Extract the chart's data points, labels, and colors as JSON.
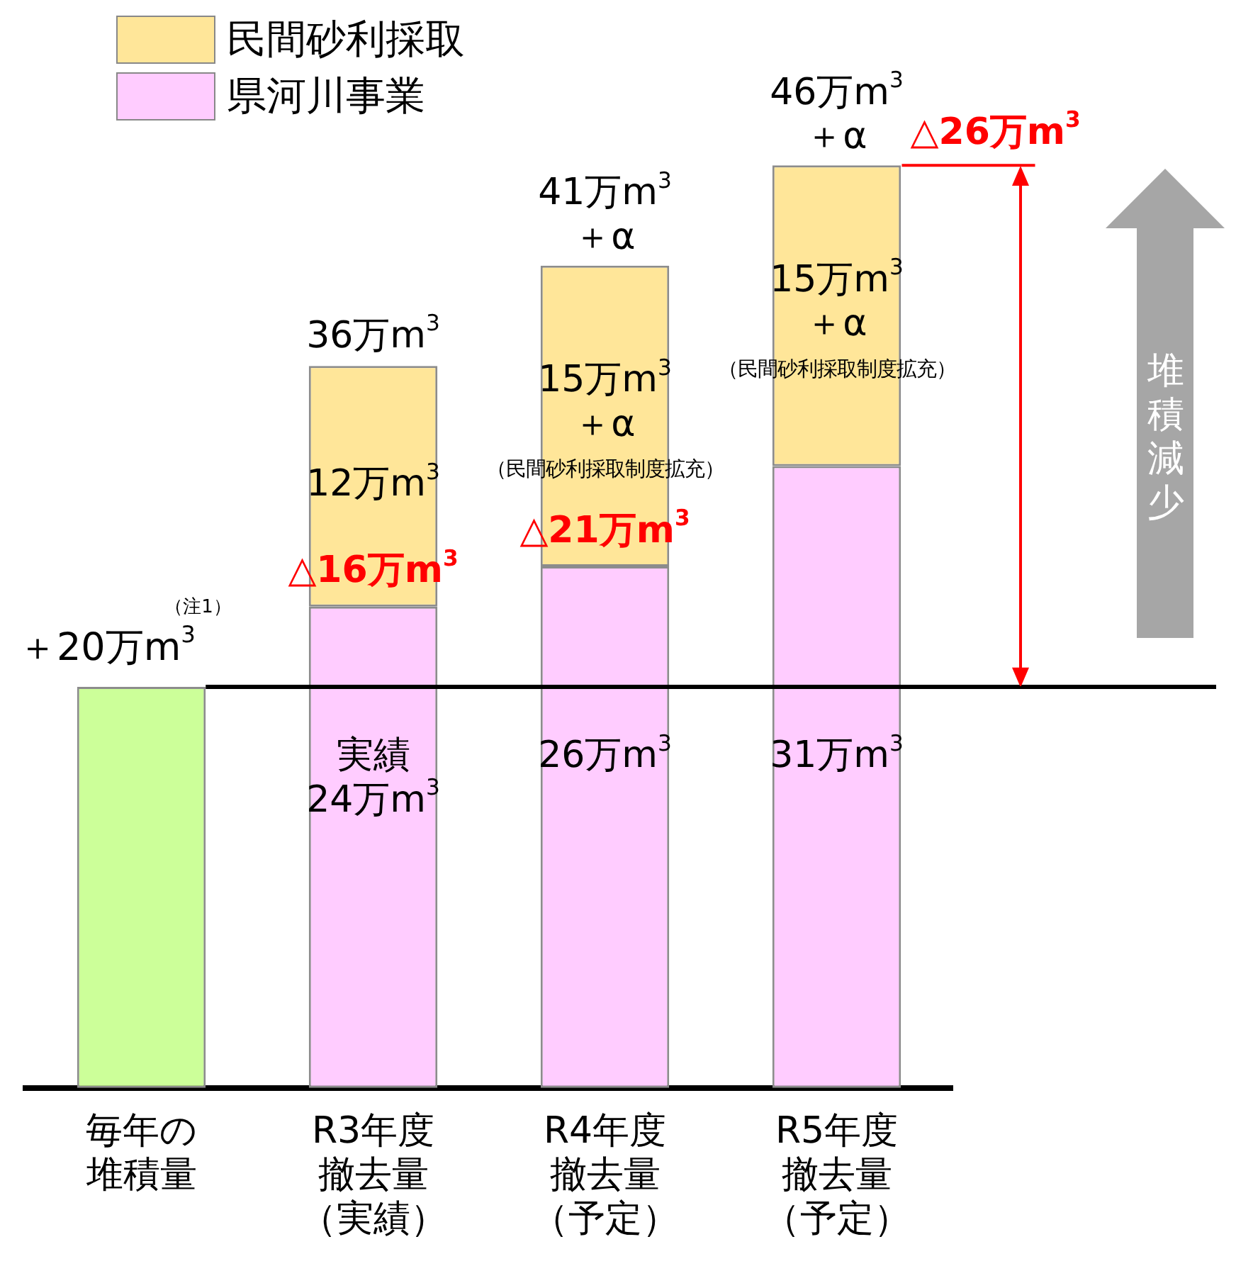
{
  "chart_data": {
    "type": "bar",
    "stacked": true,
    "legend": "top left",
    "tick_labels": "x",
    "grid": false,
    "categories": [
      "毎年の堆積量",
      "R3年度撤去量（実績）",
      "R4年度撤去量（予定）",
      "R5年度撤去量（予定）"
    ],
    "series": [
      {
        "color": "#ccff99",
        "values": [
          20,
          null,
          null,
          null
        ],
        "value_labels": [
          "＋20万m$^{3}$",
          null,
          null,
          null
        ]
      },
      {
        "name": "県河川事業",
        "color": "#ffccff",
        "values": [
          null,
          24,
          26,
          31
        ],
        "value_labels": [
          null,
          "実績\n24万m$^{3}$",
          "26万m$^{3}$",
          "31万m$^{3}$"
        ]
      },
      {
        "name": "民間砂利採取",
        "color": "#ffe699",
        "values": [
          null,
          12,
          15,
          15
        ],
        "value_labels": [
          null,
          "12万m$^{3}$",
          "15万m$^{3}$\n＋α\n（民間砂利採取制度拡充）",
          "15万m$^{3}$\n＋α\n（民間砂利採取制度拡充）"
        ]
      }
    ],
    "totals": [
      null,
      "36万m$^{3}$",
      "41万m$^{3}$\n＋α",
      "46万m$^{3}$\n＋α"
    ],
    "ref_lines": [
      {
        "axis": "y",
        "value": 20,
        "color": "#000000"
      }
    ],
    "annotations": [
      "（注1）",
      "堆積減少",
      {
        "text": "△16万m$^{3}$",
        "x": "R3年度撤去量（実績）",
        "y": 24
      },
      {
        "text": "△21万m$^{3}$",
        "x": "R4年度撤去量（予定）",
        "y": 26
      },
      {
        "text": "△26万m$^{3}$",
        "x": "R5年度撤去量（予定）",
        "y": 46
      }
    ]
  }
}
